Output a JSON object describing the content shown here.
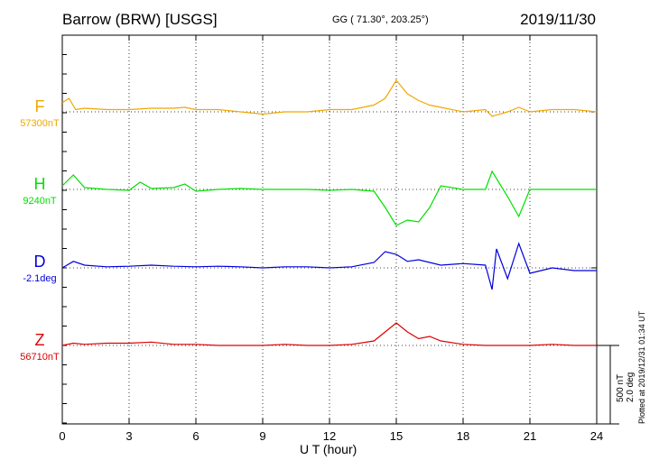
{
  "header": {
    "station": "Barrow (BRW)  [USGS]",
    "coords": "GG ( 71.30°, 203.25°)",
    "date": "2019/11/30"
  },
  "footer": {
    "plotted": "Plotted at 2019/12/31 01:34 UT",
    "scale_nt": "500 nT",
    "scale_deg": "2.0 deg"
  },
  "components": [
    {
      "id": "F",
      "label": "F",
      "base": "57300nT",
      "color": "#f0a800"
    },
    {
      "id": "H",
      "label": "H",
      "base": "9240nT",
      "color": "#00e000"
    },
    {
      "id": "D",
      "label": "D",
      "base": "-2.1deg",
      "color": "#0000dd"
    },
    {
      "id": "Z",
      "label": "Z",
      "base": "56710nT",
      "color": "#dd0000"
    }
  ],
  "chart_data": {
    "type": "line",
    "xlabel": "U T (hour)",
    "xlim": [
      0,
      24
    ],
    "xticks": [
      0,
      3,
      6,
      9,
      12,
      15,
      18,
      21,
      24
    ],
    "grid": true,
    "series": [
      {
        "name": "F",
        "base": "57300nT",
        "x": [
          0,
          0.3,
          0.6,
          1,
          2,
          3,
          4,
          5,
          5.5,
          6,
          7,
          8,
          9,
          10,
          11,
          12,
          13,
          14,
          14.5,
          15,
          15.5,
          16,
          16.5,
          17,
          18,
          19,
          19.3,
          20,
          20.5,
          21,
          22,
          23,
          24
        ],
        "values": [
          20,
          30,
          5,
          8,
          5,
          5,
          8,
          8,
          10,
          5,
          5,
          0,
          -5,
          0,
          0,
          5,
          5,
          15,
          30,
          70,
          40,
          25,
          15,
          10,
          0,
          5,
          -10,
          0,
          10,
          0,
          5,
          5,
          0
        ]
      },
      {
        "name": "H",
        "base": "9240nT",
        "x": [
          0,
          0.5,
          1,
          1.5,
          2,
          3,
          3.5,
          4,
          5,
          5.5,
          6,
          7,
          8,
          9,
          10,
          11,
          12,
          13,
          14,
          14.5,
          15,
          15.5,
          16,
          16.5,
          17,
          18,
          19,
          19.3,
          20,
          20.5,
          21,
          22,
          23,
          24
        ],
        "values": [
          20,
          80,
          10,
          5,
          0,
          -5,
          40,
          5,
          10,
          30,
          -10,
          0,
          5,
          0,
          0,
          0,
          -5,
          0,
          -10,
          -100,
          -200,
          -170,
          -180,
          -100,
          20,
          0,
          0,
          100,
          -40,
          -150,
          0,
          0,
          0,
          0
        ]
      },
      {
        "name": "D",
        "base": "-2.1deg",
        "x": [
          0,
          0.5,
          1,
          2,
          3,
          4,
          5,
          6,
          7,
          8,
          9,
          10,
          11,
          12,
          13,
          14,
          14.5,
          15,
          15.5,
          16,
          17,
          18,
          19,
          19.3,
          19.5,
          20,
          20.5,
          21,
          22,
          23,
          24
        ],
        "values": [
          0,
          0.12,
          0.05,
          0.02,
          0.03,
          0.05,
          0.03,
          0.02,
          0.03,
          0.02,
          0,
          0.02,
          0.02,
          0,
          0.02,
          0.1,
          0.3,
          0.25,
          0.12,
          0.15,
          0.05,
          0.08,
          0.05,
          -0.4,
          0.35,
          -0.2,
          0.45,
          -0.1,
          0,
          -0.05,
          -0.05
        ]
      },
      {
        "name": "Z",
        "base": "56710nT",
        "x": [
          0,
          0.5,
          1,
          2,
          3,
          4,
          5,
          6,
          7,
          8,
          9,
          10,
          11,
          12,
          13,
          14,
          14.5,
          15,
          15.5,
          16,
          16.5,
          17,
          18,
          19,
          20,
          21,
          22,
          23,
          24
        ],
        "values": [
          0,
          10,
          5,
          10,
          10,
          15,
          5,
          5,
          0,
          0,
          0,
          5,
          0,
          0,
          5,
          20,
          60,
          100,
          60,
          30,
          40,
          20,
          5,
          0,
          0,
          0,
          5,
          0,
          0
        ]
      }
    ]
  }
}
